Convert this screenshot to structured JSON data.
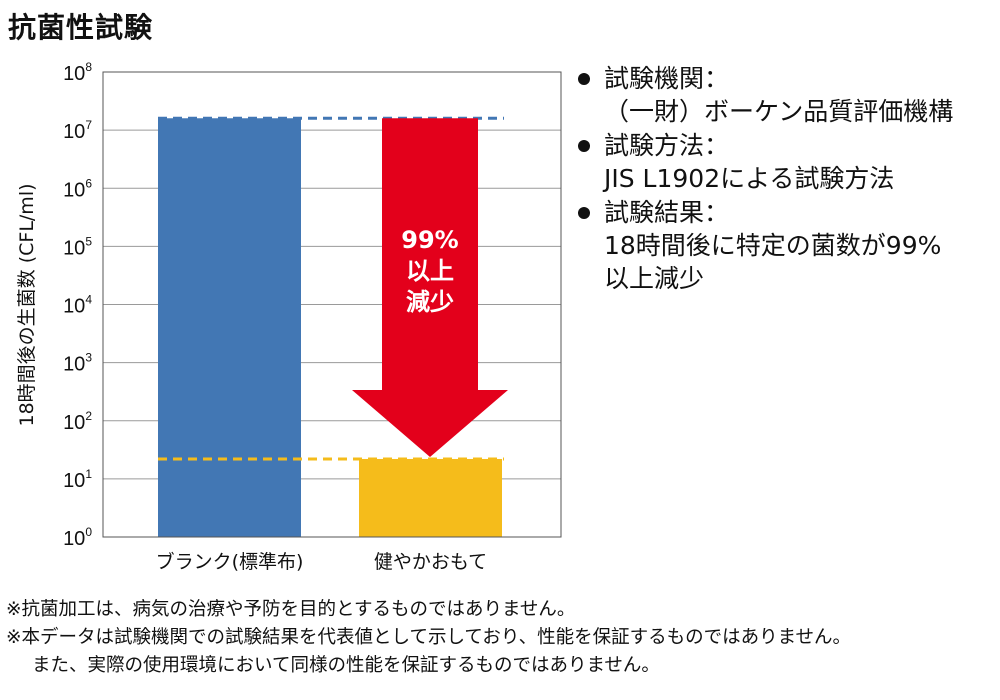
{
  "title": "抗菌性試験",
  "chart_data": {
    "type": "bar",
    "yscale": "log",
    "ylim": [
      1,
      100000000
    ],
    "ylabel": "18時間後の生菌数 (CFL/ml)",
    "xlabel": "",
    "yticks": [
      {
        "base": "10",
        "exp": "8"
      },
      {
        "base": "10",
        "exp": "7"
      },
      {
        "base": "10",
        "exp": "6"
      },
      {
        "base": "10",
        "exp": "5"
      },
      {
        "base": "10",
        "exp": "4"
      },
      {
        "base": "10",
        "exp": "3"
      },
      {
        "base": "10",
        "exp": "2"
      },
      {
        "base": "10",
        "exp": "1"
      },
      {
        "base": "10",
        "exp": "0"
      }
    ],
    "categories": [
      "ブランク(標準布)",
      "健やかおもて"
    ],
    "values": [
      16000000,
      22
    ],
    "colors": [
      "#4277b4",
      "#f5bc1b"
    ],
    "reference_lines": [
      {
        "value": 16000000,
        "color": "#4277b4",
        "style": "dashed"
      },
      {
        "value": 22,
        "color": "#f5bc1b",
        "style": "dashed"
      }
    ],
    "annotation": {
      "lines": [
        "99%",
        "以上",
        "減少"
      ],
      "color": "#e3001b",
      "shape": "down-arrow"
    },
    "grid": true
  },
  "notes": [
    {
      "heading": "試験機関：",
      "body": [
        "（一財）ボーケン品質評価機構"
      ]
    },
    {
      "heading": "試験方法：",
      "body": [
        "JIS L1902による試験方法"
      ]
    },
    {
      "heading": "試験結果：",
      "body": [
        "18時間後に特定の菌数が99%",
        "以上減少"
      ]
    }
  ],
  "footnotes": [
    "※抗菌加工は、病気の治療や予防を目的とするものではありません。",
    "※本データは試験機関での試験結果を代表値として示しており、性能を保証するものではありません。",
    "また、実際の使用環境において同様の性能を保証するものではありません。"
  ]
}
